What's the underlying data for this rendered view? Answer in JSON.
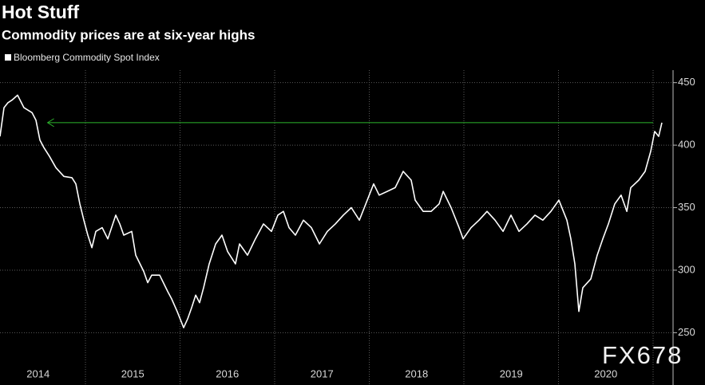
{
  "chart_data": {
    "type": "line",
    "title": "Hot Stuff",
    "subtitle": "Commodity prices are at six-year highs",
    "watermark": "FX678",
    "series": [
      {
        "name": "Bloomberg Commodity Spot Index",
        "color": "#ffffff",
        "x": [
          2014.097,
          2014.139,
          2014.181,
          2014.224,
          2014.283,
          2014.35,
          2014.435,
          2014.477,
          2014.519,
          2014.561,
          2014.62,
          2014.688,
          2014.772,
          2014.857,
          2014.899,
          2014.941,
          2014.983,
          2015.025,
          2015.068,
          2015.11,
          2015.177,
          2015.236,
          2015.321,
          2015.363,
          2015.405,
          2015.489,
          2015.532,
          2015.616,
          2015.658,
          2015.7,
          2015.785,
          2015.869,
          2015.911,
          2015.97,
          2016.038,
          2016.08,
          2016.122,
          2016.165,
          2016.207,
          2016.249,
          2016.308,
          2016.376,
          2016.443,
          2016.502,
          2016.586,
          2016.629,
          2016.713,
          2016.797,
          2016.882,
          2016.966,
          2017.034,
          2017.093,
          2017.152,
          2017.219,
          2017.304,
          2017.388,
          2017.473,
          2017.557,
          2017.641,
          2017.726,
          2017.81,
          2017.895,
          2017.979,
          2018.046,
          2018.105,
          2018.19,
          2018.274,
          2018.359,
          2018.443,
          2018.485,
          2018.57,
          2018.654,
          2018.738,
          2018.781,
          2018.865,
          2018.949,
          2018.992,
          2019.076,
          2019.16,
          2019.245,
          2019.329,
          2019.414,
          2019.498,
          2019.582,
          2019.667,
          2019.751,
          2019.835,
          2019.92,
          2020.004,
          2020.089,
          2020.131,
          2020.173,
          2020.215,
          2020.257,
          2020.342,
          2020.409,
          2020.468,
          2020.527,
          2020.595,
          2020.662,
          2020.722,
          2020.764,
          2020.848,
          2020.916,
          2020.975,
          2021.017,
          2021.059,
          2021.093
        ],
        "values": [
          407,
          430,
          434,
          436,
          440,
          430,
          426,
          420,
          404,
          398,
          391,
          382,
          375,
          374,
          369,
          353,
          340,
          328,
          318,
          331,
          334,
          325,
          344,
          337,
          328,
          331,
          312,
          299,
          290,
          296,
          296,
          283,
          277,
          267,
          254,
          261,
          270,
          280,
          274,
          286,
          305,
          321,
          328,
          315,
          305,
          321,
          312,
          325,
          337,
          331,
          344,
          347,
          334,
          328,
          340,
          334,
          321,
          331,
          337,
          344,
          350,
          340,
          356,
          369,
          360,
          363,
          366,
          379,
          372,
          356,
          347,
          347,
          353,
          363,
          350,
          334,
          325,
          334,
          340,
          347,
          340,
          331,
          344,
          331,
          337,
          344,
          340,
          347,
          356,
          340,
          325,
          305,
          267,
          286,
          293,
          312,
          325,
          337,
          353,
          360,
          347,
          366,
          372,
          379,
          395,
          411,
          407,
          418
        ]
      }
    ],
    "xlim": [
      2014.097,
      2021.2
    ],
    "xticks": [
      {
        "value": 2014.5,
        "label": "2014"
      },
      {
        "value": 2015.5,
        "label": "2015"
      },
      {
        "value": 2016.5,
        "label": "2016"
      },
      {
        "value": 2017.5,
        "label": "2017"
      },
      {
        "value": 2018.5,
        "label": "2018"
      },
      {
        "value": 2019.5,
        "label": "2019"
      },
      {
        "value": 2020.5,
        "label": "2020"
      }
    ],
    "xgrid": [
      2015,
      2016,
      2017,
      2018,
      2019,
      2020,
      2021
    ],
    "ylim": [
      226,
      460
    ],
    "yticks": [
      250,
      300,
      350,
      400,
      450
    ],
    "grid": true,
    "reference_line": {
      "value": 418,
      "x": [
        2014.6,
        2021.0
      ],
      "color": "#2db52d"
    }
  }
}
